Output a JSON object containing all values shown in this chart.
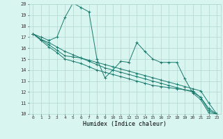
{
  "xlabel": "Humidex (Indice chaleur)",
  "ylabel": "",
  "bg_color": "#d8f5f0",
  "grid_color": "#b0d8d0",
  "line_color": "#1a7a6e",
  "xmin": 0,
  "xmax": 23,
  "ymin": 10,
  "ymax": 20,
  "series": [
    [
      17.3,
      17.0,
      16.7,
      17.0,
      18.8,
      20.1,
      19.7,
      19.3,
      15.0,
      13.3,
      14.0,
      14.8,
      14.7,
      16.5,
      15.7,
      15.0,
      14.7,
      14.7,
      14.7,
      13.2,
      11.9,
      11.3,
      10.1,
      10.0
    ],
    [
      17.3,
      16.8,
      16.3,
      15.8,
      15.3,
      15.2,
      15.1,
      14.9,
      14.7,
      14.5,
      14.3,
      14.1,
      13.9,
      13.7,
      13.5,
      13.3,
      13.1,
      12.9,
      12.7,
      12.5,
      12.3,
      12.1,
      11.0,
      10.0
    ],
    [
      17.3,
      16.8,
      16.5,
      16.1,
      15.7,
      15.4,
      15.1,
      14.8,
      14.5,
      14.2,
      14.0,
      13.8,
      13.6,
      13.4,
      13.2,
      13.0,
      12.8,
      12.6,
      12.4,
      12.2,
      12.0,
      11.5,
      10.5,
      10.0
    ],
    [
      17.3,
      16.7,
      16.1,
      15.6,
      15.0,
      14.8,
      14.6,
      14.3,
      14.0,
      13.8,
      13.6,
      13.4,
      13.2,
      13.0,
      12.8,
      12.6,
      12.5,
      12.4,
      12.3,
      12.2,
      12.1,
      11.5,
      10.3,
      10.0
    ]
  ]
}
